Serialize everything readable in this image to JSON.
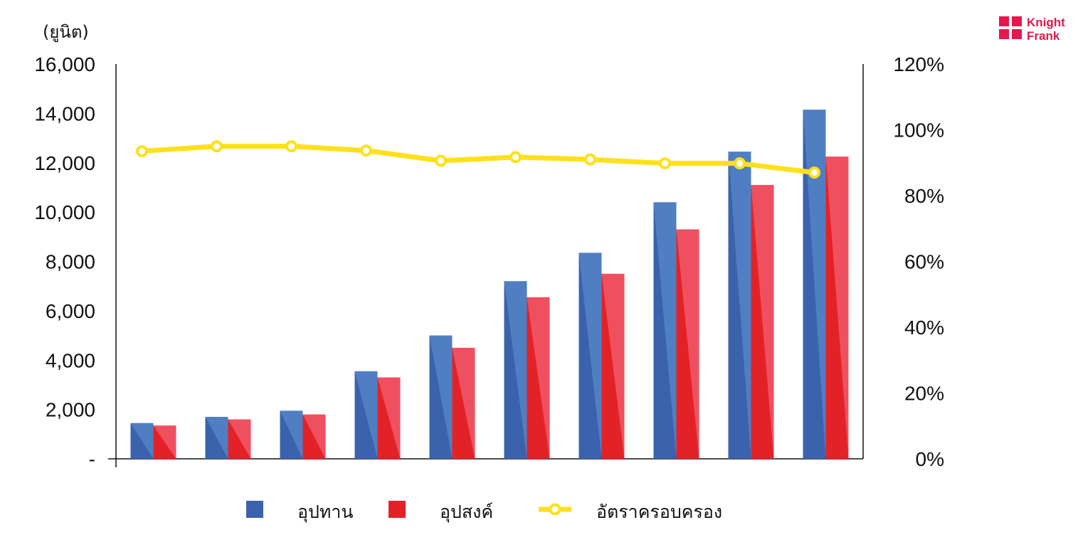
{
  "chart_data": {
    "type": "bar",
    "categories": [
      "",
      "",
      "",
      "",
      "",
      "",
      "",
      "",
      "",
      ""
    ],
    "y_unit_label": "(ยูนิต)",
    "ylim": [
      0,
      16000
    ],
    "y_ticks": [
      "-",
      "2,000",
      "4,000",
      "6,000",
      "8,000",
      "10,000",
      "12,000",
      "14,000",
      "16,000"
    ],
    "y2lim": [
      0,
      1.2
    ],
    "y2_ticks": [
      "0%",
      "20%",
      "40%",
      "60%",
      "80%",
      "100%",
      "120%"
    ],
    "grid": false,
    "legend_position": "bottom",
    "series": [
      {
        "name": "อุปทาน",
        "type": "bar",
        "axis": "left",
        "values": [
          1450,
          1700,
          1950,
          3550,
          5000,
          7200,
          8350,
          10400,
          12450,
          14150
        ]
      },
      {
        "name": "อุปสงค์",
        "type": "bar",
        "axis": "left",
        "values": [
          1350,
          1600,
          1800,
          3300,
          4500,
          6550,
          7500,
          9300,
          11100,
          12250
        ]
      },
      {
        "name": "อัตราครอบครอง",
        "type": "line",
        "axis": "right",
        "values": [
          0.935,
          0.95,
          0.95,
          0.937,
          0.906,
          0.917,
          0.91,
          0.898,
          0.898,
          0.87
        ]
      }
    ]
  },
  "colors": {
    "supply": "#4f7fc2",
    "supply_dark": "#3a62ad",
    "demand": "#ef5060",
    "demand_dark": "#e32228",
    "line": "#ffe01b",
    "axis": "#111111",
    "logo": "#e5174d"
  },
  "logo": {
    "line1": "Knight",
    "line2": "Frank"
  }
}
